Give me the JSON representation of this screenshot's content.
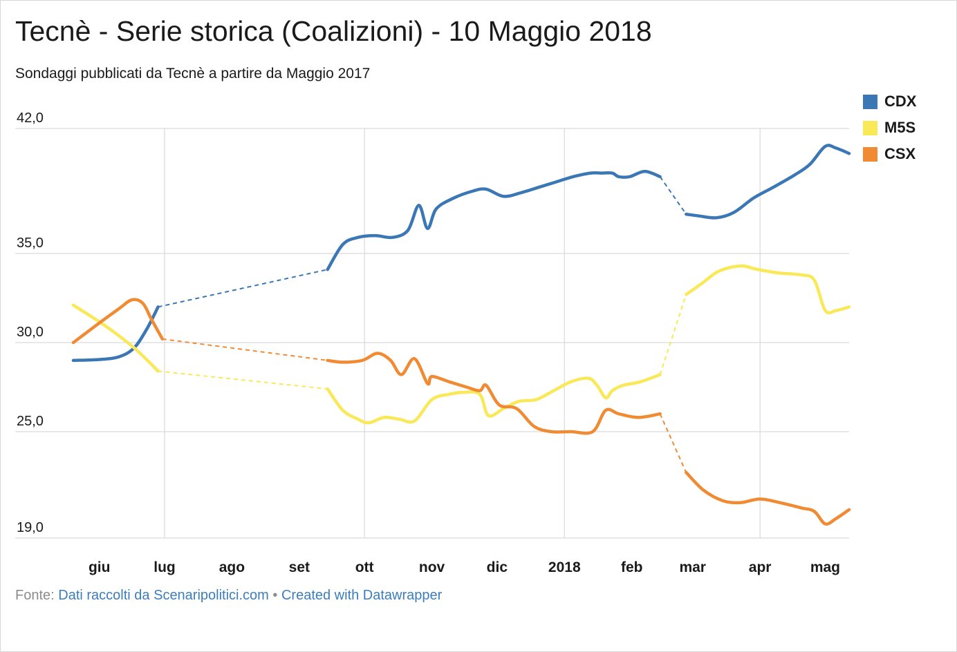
{
  "title": "Tecnè - Serie storica (Coalizioni) - 10 Maggio 2018",
  "subtitle": "Sondaggi pubblicati da Tecnè a partire da Maggio 2017",
  "footer": {
    "source_label": "Fonte:",
    "source_link": "Dati raccolti da Scenaripolitici.com",
    "separator": "•",
    "credit_link": "Created with Datawrapper"
  },
  "chart_data": {
    "type": "line",
    "y_ticks": [
      "42,0",
      "35,0",
      "30,0",
      "25,0",
      "19,0"
    ],
    "y_tick_values": [
      42,
      35,
      30,
      25,
      19
    ],
    "ylim": [
      19,
      42
    ],
    "xlim": [
      "2017-05-20",
      "2018-05-12"
    ],
    "x_ticks": [
      {
        "label": "giu",
        "date": "2017-06-01",
        "gridline": false
      },
      {
        "label": "lug",
        "date": "2017-07-01",
        "gridline": true
      },
      {
        "label": "ago",
        "date": "2017-08-01",
        "gridline": false
      },
      {
        "label": "set",
        "date": "2017-09-01",
        "gridline": false
      },
      {
        "label": "ott",
        "date": "2017-10-01",
        "gridline": true
      },
      {
        "label": "nov",
        "date": "2017-11-01",
        "gridline": false
      },
      {
        "label": "dic",
        "date": "2017-12-01",
        "gridline": false
      },
      {
        "label": "2018",
        "date": "2018-01-01",
        "gridline": true
      },
      {
        "label": "feb",
        "date": "2018-02-01",
        "gridline": false
      },
      {
        "label": "mar",
        "date": "2018-03-01",
        "gridline": false
      },
      {
        "label": "apr",
        "date": "2018-04-01",
        "gridline": true
      },
      {
        "label": "mag",
        "date": "2018-05-01",
        "gridline": false
      }
    ],
    "legend_position": "top-right",
    "series": [
      {
        "name": "CDX",
        "color": "#3a77b4",
        "segments": [
          [
            [
              "2017-05-20",
              29.0
            ],
            [
              "2017-06-01",
              29.05
            ],
            [
              "2017-06-10",
              29.2
            ],
            [
              "2017-06-17",
              29.7
            ],
            [
              "2017-06-23",
              30.8
            ],
            [
              "2017-06-28",
              32.0
            ]
          ],
          [
            [
              "2017-09-14",
              34.1
            ],
            [
              "2017-09-21",
              35.5
            ],
            [
              "2017-09-28",
              35.9
            ],
            [
              "2017-10-06",
              36.0
            ],
            [
              "2017-10-14",
              35.9
            ],
            [
              "2017-10-21",
              36.3
            ],
            [
              "2017-10-26",
              37.7
            ],
            [
              "2017-10-30",
              36.4
            ],
            [
              "2017-11-03",
              37.5
            ],
            [
              "2017-11-11",
              38.1
            ],
            [
              "2017-11-20",
              38.5
            ],
            [
              "2017-11-26",
              38.6
            ],
            [
              "2017-12-04",
              38.2
            ],
            [
              "2017-12-12",
              38.4
            ],
            [
              "2017-12-20",
              38.7
            ],
            [
              "2017-12-28",
              39.0
            ],
            [
              "2018-01-05",
              39.3
            ],
            [
              "2018-01-13",
              39.5
            ],
            [
              "2018-01-18",
              39.5
            ],
            [
              "2018-01-23",
              39.5
            ],
            [
              "2018-01-26",
              39.3
            ],
            [
              "2018-01-31",
              39.3
            ],
            [
              "2018-02-07",
              39.6
            ],
            [
              "2018-02-14",
              39.3
            ]
          ],
          [
            [
              "2018-02-26",
              37.2
            ],
            [
              "2018-03-04",
              37.1
            ],
            [
              "2018-03-12",
              37.0
            ],
            [
              "2018-03-20",
              37.3
            ],
            [
              "2018-03-29",
              38.1
            ],
            [
              "2018-04-07",
              38.7
            ],
            [
              "2018-04-17",
              39.4
            ],
            [
              "2018-04-24",
              40.0
            ],
            [
              "2018-05-01",
              41.0
            ],
            [
              "2018-05-06",
              40.9
            ],
            [
              "2018-05-12",
              40.6
            ]
          ]
        ]
      },
      {
        "name": "M5S",
        "color": "#f9e858",
        "segments": [
          [
            [
              "2017-05-20",
              32.1
            ],
            [
              "2017-06-03",
              31.0
            ],
            [
              "2017-06-17",
              29.7
            ],
            [
              "2017-06-28",
              28.4
            ]
          ],
          [
            [
              "2017-09-14",
              27.4
            ],
            [
              "2017-09-21",
              26.2
            ],
            [
              "2017-09-28",
              25.7
            ],
            [
              "2017-10-03",
              25.5
            ],
            [
              "2017-10-10",
              25.8
            ],
            [
              "2017-10-17",
              25.7
            ],
            [
              "2017-10-24",
              25.6
            ],
            [
              "2017-11-01",
              26.8
            ],
            [
              "2017-11-09",
              27.1
            ],
            [
              "2017-11-15",
              27.2
            ],
            [
              "2017-11-23",
              27.1
            ],
            [
              "2017-11-27",
              25.9
            ],
            [
              "2017-12-04",
              26.3
            ],
            [
              "2017-12-11",
              26.7
            ],
            [
              "2017-12-19",
              26.8
            ],
            [
              "2017-12-27",
              27.3
            ],
            [
              "2018-01-04",
              27.8
            ],
            [
              "2018-01-12",
              28.0
            ],
            [
              "2018-01-16",
              27.6
            ],
            [
              "2018-01-20",
              26.9
            ],
            [
              "2018-01-23",
              27.3
            ],
            [
              "2018-01-28",
              27.6
            ],
            [
              "2018-02-05",
              27.8
            ],
            [
              "2018-02-14",
              28.2
            ]
          ],
          [
            [
              "2018-02-26",
              32.7
            ],
            [
              "2018-03-05",
              33.3
            ],
            [
              "2018-03-13",
              34.0
            ],
            [
              "2018-03-23",
              34.3
            ],
            [
              "2018-03-31",
              34.1
            ],
            [
              "2018-04-10",
              33.9
            ],
            [
              "2018-04-20",
              33.8
            ],
            [
              "2018-04-26",
              33.5
            ],
            [
              "2018-05-01",
              31.8
            ],
            [
              "2018-05-06",
              31.8
            ],
            [
              "2018-05-12",
              32.0
            ]
          ]
        ]
      },
      {
        "name": "CSX",
        "color": "#f08a33",
        "segments": [
          [
            [
              "2017-05-20",
              30.0
            ],
            [
              "2017-06-01",
              31.1
            ],
            [
              "2017-06-10",
              31.9
            ],
            [
              "2017-06-16",
              32.4
            ],
            [
              "2017-06-21",
              32.2
            ],
            [
              "2017-06-25",
              31.3
            ],
            [
              "2017-06-30",
              30.2
            ]
          ],
          [
            [
              "2017-09-14",
              29.0
            ],
            [
              "2017-09-21",
              28.9
            ],
            [
              "2017-09-30",
              29.0
            ],
            [
              "2017-10-07",
              29.4
            ],
            [
              "2017-10-13",
              29.0
            ],
            [
              "2017-10-18",
              28.2
            ],
            [
              "2017-10-24",
              29.1
            ],
            [
              "2017-10-30",
              27.7
            ],
            [
              "2017-11-01",
              28.1
            ],
            [
              "2017-11-09",
              27.8
            ],
            [
              "2017-11-17",
              27.5
            ],
            [
              "2017-11-23",
              27.3
            ],
            [
              "2017-11-26",
              27.6
            ],
            [
              "2017-12-02",
              26.5
            ],
            [
              "2017-12-10",
              26.3
            ],
            [
              "2017-12-18",
              25.3
            ],
            [
              "2017-12-26",
              25.0
            ],
            [
              "2018-01-04",
              25.0
            ],
            [
              "2018-01-14",
              25.0
            ],
            [
              "2018-01-20",
              26.2
            ],
            [
              "2018-01-26",
              26.0
            ],
            [
              "2018-02-04",
              25.8
            ],
            [
              "2018-02-14",
              26.0
            ]
          ],
          [
            [
              "2018-02-26",
              22.7
            ],
            [
              "2018-03-06",
              21.7
            ],
            [
              "2018-03-15",
              21.1
            ],
            [
              "2018-03-23",
              21.0
            ],
            [
              "2018-04-01",
              21.2
            ],
            [
              "2018-04-10",
              21.0
            ],
            [
              "2018-04-20",
              20.7
            ],
            [
              "2018-04-26",
              20.5
            ],
            [
              "2018-05-01",
              19.8
            ],
            [
              "2018-05-06",
              20.1
            ],
            [
              "2018-05-12",
              20.6
            ]
          ]
        ]
      }
    ]
  }
}
